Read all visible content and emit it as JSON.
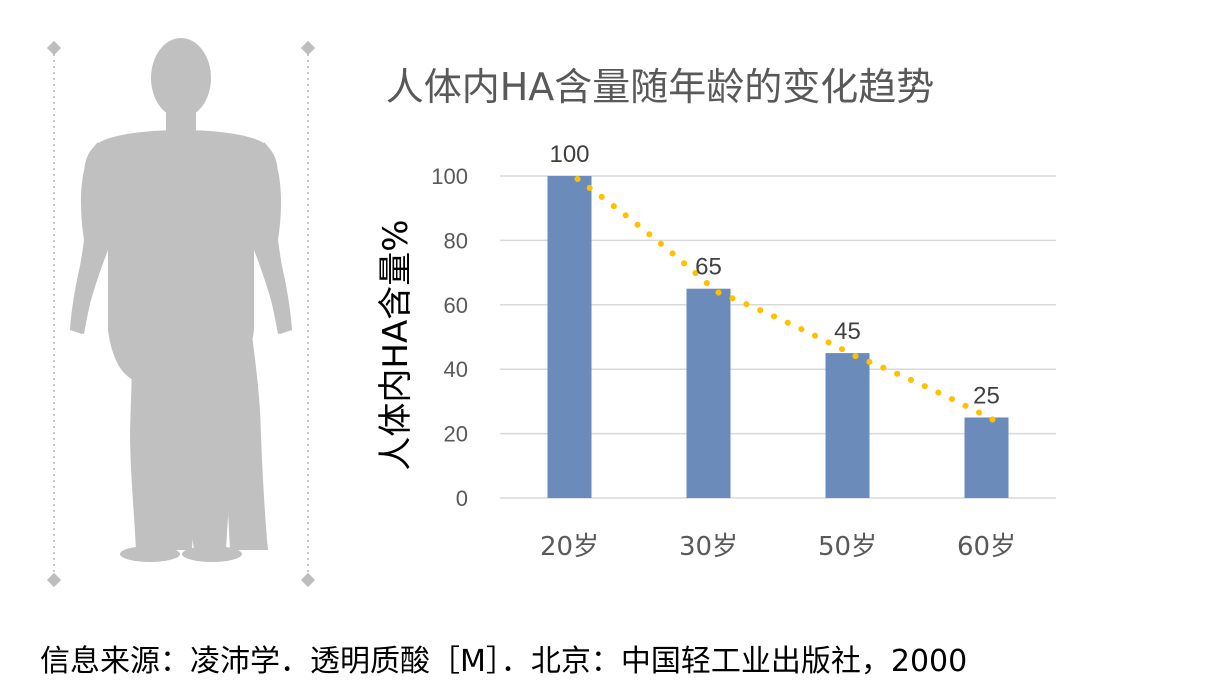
{
  "chart_data": {
    "type": "bar",
    "title": "人体内HA含量随年龄的变化趋势",
    "ylabel": "人体内HA含量%",
    "xlabel": "",
    "categories": [
      "20岁",
      "30岁",
      "50岁",
      "60岁"
    ],
    "values": [
      100,
      65,
      45,
      25
    ],
    "data_labels": [
      "100",
      "65",
      "45",
      "25"
    ],
    "ylim": [
      0,
      100
    ],
    "yticks": [
      0,
      20,
      40,
      60,
      80,
      100
    ],
    "grid": true,
    "trendline": {
      "style": "dotted",
      "type": "polynomial"
    },
    "colors": {
      "bar": "#6b8cba",
      "trendline": "#ffc000",
      "grid": "#d9d9d9"
    }
  },
  "illustration": {
    "icon": "human-body-silhouette-icon",
    "color": "#c0c0c0"
  },
  "source": "信息来源：凌沛学．透明质酸［M］．北京：中国轻工业出版社，2000"
}
